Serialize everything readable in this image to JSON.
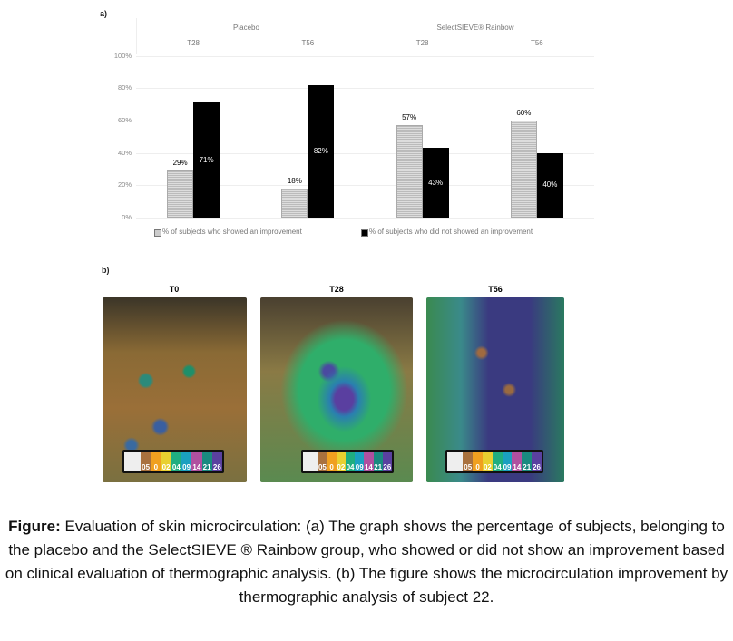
{
  "panel_a_label": "a)",
  "panel_b_label": "b)",
  "chart_data": {
    "type": "bar",
    "groups": [
      "Placebo",
      "SelectSIEVE® Rainbow"
    ],
    "categories": [
      "T28",
      "T56",
      "T28",
      "T56"
    ],
    "series": [
      {
        "name": "% of subjects who showed an improvement",
        "values": [
          29,
          18,
          57,
          60
        ],
        "labels": [
          "29%",
          "18%",
          "57%",
          "60%"
        ],
        "color": "#cccccc"
      },
      {
        "name": "% of subjects who did not showed an improvement",
        "values": [
          71,
          82,
          43,
          40
        ],
        "labels": [
          "71%",
          "82%",
          "43%",
          "40%"
        ],
        "color": "#000000"
      }
    ],
    "yticks": [
      "0%",
      "20%",
      "40%",
      "60%",
      "80%",
      "100%"
    ],
    "ylim": [
      0,
      100
    ],
    "legend": "bottom",
    "grid": true
  },
  "photos": [
    {
      "title": "T0"
    },
    {
      "title": "T28"
    },
    {
      "title": "T56"
    }
  ],
  "scale_labels": [
    "05",
    "0",
    "02",
    "04",
    "09",
    "14",
    "21",
    "26"
  ],
  "caption": {
    "bold": "Figure:",
    "text": " Evaluation of skin microcirculation: (a) The graph shows the percentage of subjects, belonging to the placebo and the SelectSIEVE ® Rainbow group, who showed or did not show an improvement based on clinical evaluation of thermographic analysis. (b) The figure shows the microcirculation improvement by thermographic analysis of subject 22."
  }
}
